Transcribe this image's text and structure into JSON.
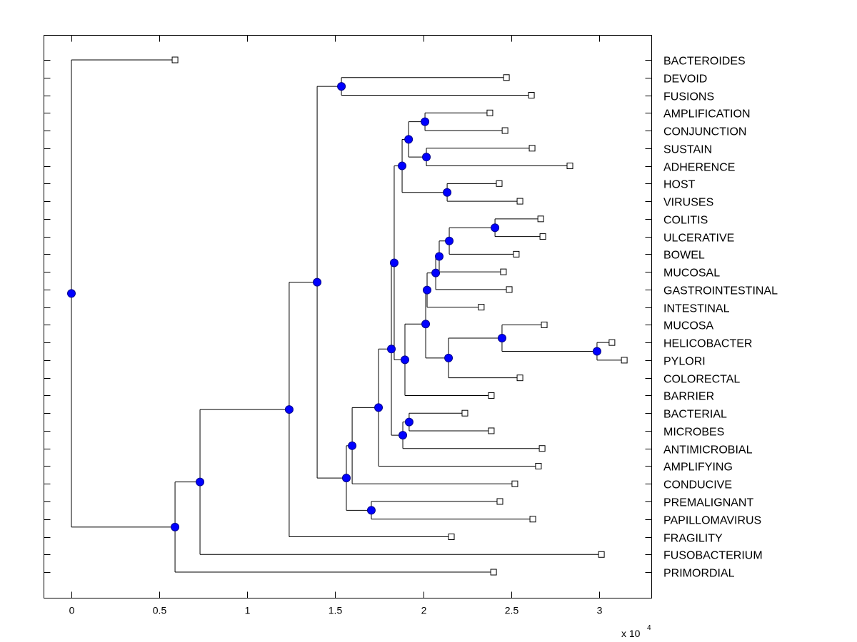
{
  "chart_data": {
    "type": "dendrogram",
    "title": "",
    "xlabel": "",
    "ylabel": "",
    "x_multiplier_label": "x 10",
    "x_multiplier_exponent": "4",
    "xlim": [
      -0.158,
      3.295
    ],
    "xticks": [
      0,
      0.5,
      1,
      1.5,
      2,
      2.5,
      3
    ],
    "xtick_labels": [
      "0",
      "0.5",
      "1",
      "1.5",
      "2",
      "2.5",
      "3"
    ],
    "grid": false,
    "leaf_marker": "open-square",
    "node_marker": "filled-circle",
    "node_color": "#0000ff",
    "leaves": [
      {
        "label": "BACTEROIDES",
        "x": 0.589
      },
      {
        "label": "DEVOID",
        "x": 2.473
      },
      {
        "label": "FUSIONS",
        "x": 2.615
      },
      {
        "label": "AMPLIFICATION",
        "x": 2.379
      },
      {
        "label": "CONJUNCTION",
        "x": 2.465
      },
      {
        "label": "SUSTAIN",
        "x": 2.619
      },
      {
        "label": "ADHERENCE",
        "x": 2.834
      },
      {
        "label": "HOST",
        "x": 2.432
      },
      {
        "label": "VIRUSES",
        "x": 2.55
      },
      {
        "label": "COLITIS",
        "x": 2.668
      },
      {
        "label": "ULCERATIVE",
        "x": 2.68
      },
      {
        "label": "BOWEL",
        "x": 2.529
      },
      {
        "label": "MUCOSAL",
        "x": 2.456
      },
      {
        "label": "GASTROINTESTINAL",
        "x": 2.489
      },
      {
        "label": "INTESTINAL",
        "x": 2.33
      },
      {
        "label": "MUCOSA",
        "x": 2.688
      },
      {
        "label": "HELICOBACTER",
        "x": 3.073
      },
      {
        "label": "PYLORI",
        "x": 3.143
      },
      {
        "label": "COLORECTAL",
        "x": 2.55
      },
      {
        "label": "BARRIER",
        "x": 2.387
      },
      {
        "label": "BACTERIAL",
        "x": 2.237
      },
      {
        "label": "MICROBES",
        "x": 2.387
      },
      {
        "label": "ANTIMICROBIAL",
        "x": 2.676
      },
      {
        "label": "AMPLIFYING",
        "x": 2.655
      },
      {
        "label": "CONDUCIVE",
        "x": 2.521
      },
      {
        "label": "PREMALIGNANT",
        "x": 2.436
      },
      {
        "label": "PAPILLOMAVIRUS",
        "x": 2.623
      },
      {
        "label": "FRAGILITY",
        "x": 2.16
      },
      {
        "label": "FUSOBACTERIUM",
        "x": 3.013
      },
      {
        "label": "PRIMORDIAL",
        "x": 2.4
      }
    ],
    "nodes": [
      {
        "id": "root",
        "x": 0.0,
        "children": [
          "L0",
          "A"
        ]
      },
      {
        "id": "A",
        "x": 0.589,
        "children": [
          "B",
          "L29"
        ]
      },
      {
        "id": "B",
        "x": 0.731,
        "children": [
          "C",
          "L28"
        ]
      },
      {
        "id": "C",
        "x": 1.238,
        "children": [
          "D",
          "L27"
        ]
      },
      {
        "id": "D",
        "x": 1.397,
        "children": [
          "E",
          "F"
        ]
      },
      {
        "id": "E",
        "x": 1.535,
        "children": [
          "L1",
          "L2"
        ]
      },
      {
        "id": "F",
        "x": 1.563,
        "children": [
          "G",
          "H"
        ]
      },
      {
        "id": "H",
        "x": 1.705,
        "children": [
          "L25",
          "L26"
        ]
      },
      {
        "id": "G",
        "x": 1.596,
        "children": [
          "I",
          "L24"
        ]
      },
      {
        "id": "I",
        "x": 1.746,
        "children": [
          "J",
          "L23"
        ]
      },
      {
        "id": "J",
        "x": 1.819,
        "children": [
          "K",
          "Lm"
        ]
      },
      {
        "id": "Lm",
        "x": 1.884,
        "children": [
          "M",
          "L22"
        ]
      },
      {
        "id": "M",
        "x": 1.92,
        "children": [
          "L20",
          "L21"
        ]
      },
      {
        "id": "K",
        "x": 1.835,
        "children": [
          "P",
          "Q"
        ]
      },
      {
        "id": "P",
        "x": 1.88,
        "children": [
          "R",
          "S"
        ]
      },
      {
        "id": "R",
        "x": 1.917,
        "children": [
          "T",
          "U"
        ]
      },
      {
        "id": "T",
        "x": 2.01,
        "children": [
          "L3",
          "L4"
        ]
      },
      {
        "id": "U",
        "x": 2.018,
        "children": [
          "L5",
          "L6"
        ]
      },
      {
        "id": "S",
        "x": 2.136,
        "children": [
          "L7",
          "L8"
        ]
      },
      {
        "id": "Q",
        "x": 1.896,
        "children": [
          "V",
          "L19"
        ]
      },
      {
        "id": "V",
        "x": 2.014,
        "children": [
          "W",
          "X"
        ]
      },
      {
        "id": "W",
        "x": 2.022,
        "children": [
          "Y",
          "L14"
        ]
      },
      {
        "id": "Y",
        "x": 2.071,
        "children": [
          "Z",
          "L13"
        ]
      },
      {
        "id": "Z",
        "x": 2.091,
        "children": [
          "AA",
          "L12"
        ]
      },
      {
        "id": "AA",
        "x": 2.148,
        "children": [
          "AB",
          "L11"
        ]
      },
      {
        "id": "AB",
        "x": 2.408,
        "children": [
          "L9",
          "L10"
        ]
      },
      {
        "id": "X",
        "x": 2.144,
        "children": [
          "AC",
          "L18"
        ]
      },
      {
        "id": "AC",
        "x": 2.448,
        "children": [
          "L15",
          "AD"
        ]
      },
      {
        "id": "AD",
        "x": 2.988,
        "children": [
          "L16",
          "L17"
        ]
      }
    ]
  }
}
